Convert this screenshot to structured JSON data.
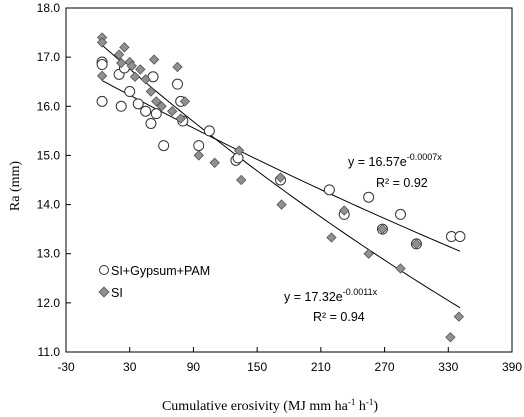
{
  "chart_data": {
    "type": "scatter",
    "xlabel": "Cumulative erosivity (MJ mm ha",
    "xlabel_sup1": "-1",
    "xlabel_mid": " h",
    "xlabel_sup2": "-1",
    "xlabel_end": ")",
    "ylabel": "Ra (mm)",
    "xlim": [
      -30,
      390
    ],
    "ylim": [
      11.0,
      18.0
    ],
    "xticks": [
      -30,
      30,
      90,
      150,
      210,
      270,
      330,
      390
    ],
    "yticks": [
      11.0,
      12.0,
      13.0,
      14.0,
      15.0,
      16.0,
      17.0,
      18.0
    ],
    "grid": false,
    "legend_position": "bottom-left",
    "series": [
      {
        "name": "SI+Gypsum+PAM",
        "marker": "circle",
        "fill": "#ffffff",
        "stroke": "#333333",
        "points": [
          [
            4,
            16.9
          ],
          [
            4,
            16.85
          ],
          [
            4,
            16.1
          ],
          [
            20,
            16.65
          ],
          [
            22,
            16.0
          ],
          [
            25,
            16.78
          ],
          [
            30,
            16.3
          ],
          [
            38,
            16.05
          ],
          [
            45,
            15.9
          ],
          [
            50,
            15.65
          ],
          [
            52,
            16.6
          ],
          [
            55,
            15.85
          ],
          [
            62,
            15.2
          ],
          [
            75,
            16.45
          ],
          [
            78,
            16.1
          ],
          [
            80,
            15.7
          ],
          [
            105,
            15.5
          ],
          [
            95,
            15.2
          ],
          [
            130,
            14.9
          ],
          [
            132,
            14.95
          ],
          [
            172,
            14.5
          ],
          [
            218,
            14.3
          ],
          [
            232,
            13.8
          ],
          [
            255,
            14.15
          ],
          [
            268,
            13.5
          ],
          [
            285,
            13.8
          ],
          [
            300,
            13.2
          ],
          [
            333,
            13.35
          ],
          [
            341,
            13.35
          ]
        ],
        "fit_equation": "y = 16.57e",
        "fit_exponent": "-0.0007x",
        "r2_label": "R² = 0.92",
        "fit": {
          "a": 16.57,
          "b": -0.0007,
          "x_range": [
            4,
            341
          ]
        }
      },
      {
        "name": "SI",
        "marker": "diamond",
        "fill": "#909090",
        "stroke": "#555555",
        "points": [
          [
            4,
            17.4
          ],
          [
            4,
            17.3
          ],
          [
            4,
            16.62
          ],
          [
            20,
            17.05
          ],
          [
            22,
            16.88
          ],
          [
            25,
            17.2
          ],
          [
            30,
            16.9
          ],
          [
            32,
            16.82
          ],
          [
            35,
            16.6
          ],
          [
            40,
            16.75
          ],
          [
            45,
            16.55
          ],
          [
            50,
            16.3
          ],
          [
            53,
            16.95
          ],
          [
            55,
            16.1
          ],
          [
            60,
            16.0
          ],
          [
            70,
            15.9
          ],
          [
            75,
            16.8
          ],
          [
            78,
            15.75
          ],
          [
            82,
            16.1
          ],
          [
            95,
            15.0
          ],
          [
            110,
            14.85
          ],
          [
            133,
            15.1
          ],
          [
            135,
            14.5
          ],
          [
            172,
            14.55
          ],
          [
            173,
            14.0
          ],
          [
            220,
            13.33
          ],
          [
            232,
            13.88
          ],
          [
            255,
            13.0
          ],
          [
            268,
            13.5
          ],
          [
            285,
            12.7
          ],
          [
            300,
            13.2
          ],
          [
            332,
            11.3
          ],
          [
            340,
            11.72
          ]
        ],
        "fit_equation": "y = 17.32e",
        "fit_exponent": "-0.0011x",
        "r2_label": "R² = 0.94",
        "fit": {
          "a": 17.32,
          "b": -0.0011,
          "x_range": [
            4,
            341
          ]
        }
      }
    ]
  }
}
